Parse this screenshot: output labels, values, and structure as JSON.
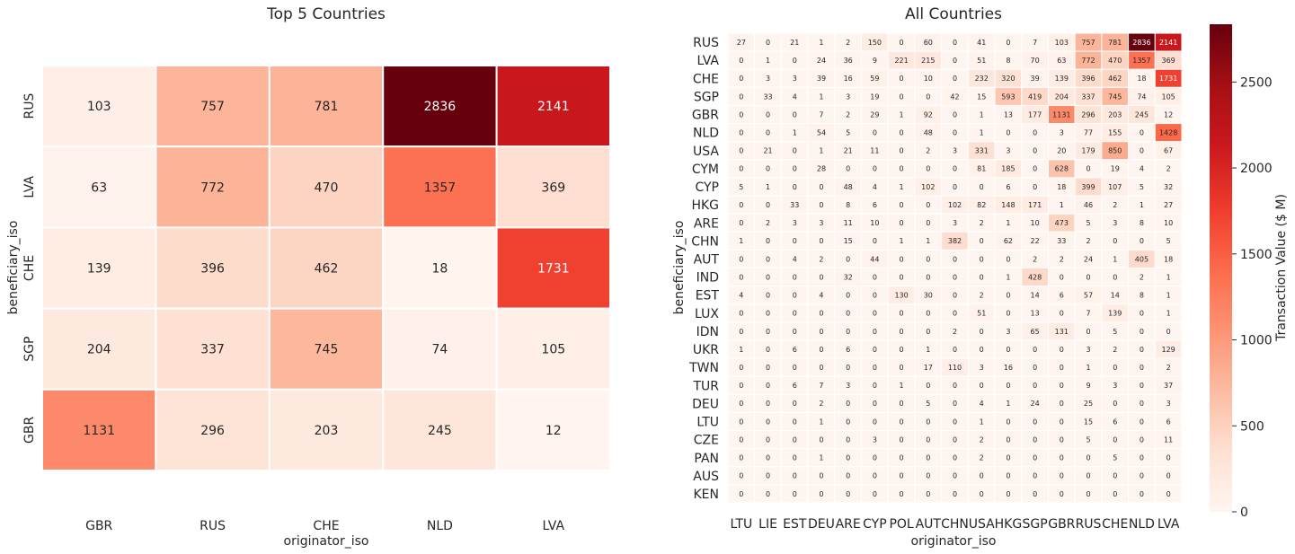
{
  "colors": {
    "scale": [
      "#fff5f0",
      "#fee0d2",
      "#fcbba1",
      "#fc9272",
      "#fb6a4a",
      "#ef3b2c",
      "#cb181d",
      "#a50f15",
      "#67000d"
    ],
    "grid_line": "#ffffff",
    "text_dark": "#262626",
    "text_light": "#ffffff"
  },
  "chart_data": [
    {
      "type": "heatmap",
      "title": "Top 5 Countries",
      "xlabel": "originator_iso",
      "ylabel": "beneficiary_iso",
      "x_categories": [
        "GBR",
        "RUS",
        "CHE",
        "NLD",
        "LVA"
      ],
      "y_categories": [
        "RUS",
        "LVA",
        "CHE",
        "SGP",
        "GBR"
      ],
      "values": [
        [
          103,
          757,
          781,
          2836,
          2141
        ],
        [
          63,
          772,
          470,
          1357,
          369
        ],
        [
          139,
          396,
          462,
          18,
          1731
        ],
        [
          204,
          337,
          745,
          74,
          105
        ],
        [
          1131,
          296,
          203,
          245,
          12
        ]
      ],
      "vmin": 0,
      "vmax": 2836
    },
    {
      "type": "heatmap",
      "title": "All Countries",
      "xlabel": "originator_iso",
      "ylabel": "beneficiary_iso",
      "x_categories": [
        "LTU",
        "LIE",
        "EST",
        "DEU",
        "ARE",
        "CYP",
        "POL",
        "AUT",
        "CHN",
        "USA",
        "HKG",
        "SGP",
        "GBR",
        "RUS",
        "CHE",
        "NLD",
        "LVA"
      ],
      "y_categories": [
        "RUS",
        "LVA",
        "CHE",
        "SGP",
        "GBR",
        "NLD",
        "USA",
        "CYM",
        "CYP",
        "HKG",
        "ARE",
        "CHN",
        "AUT",
        "IND",
        "EST",
        "LUX",
        "IDN",
        "UKR",
        "TWN",
        "TUR",
        "DEU",
        "LTU",
        "CZE",
        "PAN",
        "AUS",
        "KEN"
      ],
      "values": [
        [
          27,
          0,
          21,
          1,
          2,
          150,
          0,
          60,
          0,
          41,
          0,
          7,
          103,
          757,
          781,
          2836,
          2141
        ],
        [
          0,
          1,
          0,
          24,
          36,
          9,
          221,
          215,
          0,
          51,
          8,
          70,
          63,
          772,
          470,
          1357,
          369
        ],
        [
          0,
          3,
          3,
          39,
          16,
          59,
          0,
          10,
          0,
          232,
          320,
          39,
          139,
          396,
          462,
          18,
          1731
        ],
        [
          0,
          33,
          4,
          1,
          3,
          19,
          0,
          0,
          42,
          15,
          593,
          419,
          204,
          337,
          745,
          74,
          105
        ],
        [
          0,
          0,
          0,
          7,
          2,
          29,
          1,
          92,
          0,
          1,
          13,
          177,
          1131,
          296,
          203,
          245,
          12
        ],
        [
          0,
          0,
          1,
          54,
          5,
          0,
          0,
          48,
          0,
          1,
          0,
          0,
          3,
          77,
          155,
          0,
          1428
        ],
        [
          0,
          21,
          0,
          1,
          21,
          11,
          0,
          2,
          3,
          331,
          3,
          0,
          20,
          179,
          850,
          0,
          67
        ],
        [
          0,
          0,
          0,
          28,
          0,
          0,
          0,
          0,
          0,
          81,
          185,
          0,
          628,
          0,
          19,
          4,
          2
        ],
        [
          5,
          1,
          0,
          0,
          48,
          4,
          1,
          102,
          0,
          0,
          6,
          0,
          18,
          399,
          107,
          5,
          32
        ],
        [
          0,
          0,
          33,
          0,
          8,
          6,
          0,
          0,
          102,
          82,
          148,
          171,
          1,
          46,
          2,
          1,
          27
        ],
        [
          0,
          2,
          3,
          3,
          11,
          10,
          0,
          0,
          3,
          2,
          1,
          10,
          473,
          5,
          3,
          8,
          10
        ],
        [
          1,
          0,
          0,
          0,
          15,
          0,
          1,
          1,
          382,
          0,
          62,
          22,
          33,
          2,
          0,
          0,
          5
        ],
        [
          0,
          0,
          4,
          2,
          0,
          44,
          0,
          0,
          0,
          0,
          0,
          2,
          2,
          24,
          1,
          405,
          18
        ],
        [
          0,
          0,
          0,
          0,
          32,
          0,
          0,
          0,
          0,
          0,
          1,
          428,
          0,
          0,
          0,
          2,
          1
        ],
        [
          4,
          0,
          0,
          4,
          0,
          0,
          130,
          30,
          0,
          2,
          0,
          14,
          6,
          57,
          14,
          8,
          1
        ],
        [
          0,
          0,
          0,
          0,
          0,
          0,
          0,
          0,
          0,
          51,
          0,
          13,
          0,
          7,
          139,
          0,
          1
        ],
        [
          0,
          0,
          0,
          0,
          0,
          0,
          0,
          0,
          2,
          0,
          3,
          65,
          131,
          0,
          5,
          0,
          0
        ],
        [
          1,
          0,
          6,
          0,
          6,
          0,
          0,
          1,
          0,
          0,
          0,
          0,
          0,
          3,
          2,
          0,
          129
        ],
        [
          0,
          0,
          0,
          0,
          0,
          0,
          0,
          17,
          110,
          3,
          16,
          0,
          0,
          1,
          0,
          0,
          2
        ],
        [
          0,
          0,
          6,
          7,
          3,
          0,
          1,
          0,
          0,
          0,
          0,
          0,
          0,
          9,
          3,
          0,
          37
        ],
        [
          0,
          0,
          0,
          2,
          0,
          0,
          0,
          5,
          0,
          4,
          1,
          24,
          0,
          25,
          0,
          0,
          3
        ],
        [
          0,
          0,
          0,
          1,
          0,
          0,
          0,
          0,
          0,
          1,
          0,
          0,
          0,
          15,
          6,
          0,
          6
        ],
        [
          0,
          0,
          0,
          0,
          0,
          3,
          0,
          0,
          0,
          2,
          0,
          0,
          0,
          5,
          0,
          0,
          11
        ],
        [
          0,
          0,
          0,
          1,
          0,
          0,
          0,
          0,
          0,
          2,
          0,
          0,
          0,
          0,
          5,
          0,
          0
        ],
        [
          0,
          0,
          0,
          0,
          0,
          0,
          0,
          0,
          0,
          0,
          0,
          0,
          0,
          0,
          0,
          0,
          0
        ],
        [
          0,
          0,
          0,
          0,
          0,
          0,
          0,
          0,
          0,
          0,
          0,
          0,
          0,
          0,
          0,
          0,
          0
        ]
      ],
      "vmin": 0,
      "vmax": 2836
    }
  ],
  "colorbar": {
    "label": "Transaction Value ($ M)",
    "ticks": [
      0,
      500,
      1000,
      1500,
      2000,
      2500
    ],
    "vmin": 0,
    "vmax": 2836
  }
}
